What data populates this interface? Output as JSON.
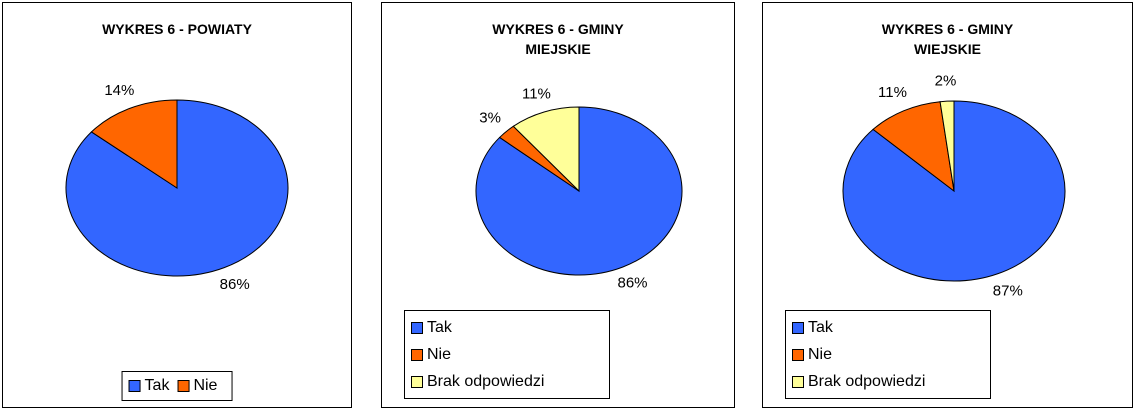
{
  "chart_data": [
    {
      "type": "pie",
      "title": "WYKRES 6 - POWIATY",
      "categories": [
        "Tak",
        "Nie"
      ],
      "values": [
        86,
        14
      ],
      "value_labels": [
        "86%",
        "14%"
      ],
      "colors": [
        "#3366ff",
        "#ff6600"
      ]
    },
    {
      "type": "pie",
      "title": "WYKRES 6 - GMINY MIEJSKIE",
      "categories": [
        "Tak",
        "Nie",
        "Brak odpowiedzi"
      ],
      "values": [
        86,
        3,
        11
      ],
      "value_labels": [
        "86%",
        "3%",
        "11%"
      ],
      "colors": [
        "#3366ff",
        "#ff6600",
        "#ffff99"
      ]
    },
    {
      "type": "pie",
      "title": "WYKRES 6 - GMINY WIEJSKIE",
      "categories": [
        "Tak",
        "Nie",
        "Brak odpowiedzi"
      ],
      "values": [
        87,
        11,
        2
      ],
      "value_labels": [
        "87%",
        "11%",
        "2%"
      ],
      "colors": [
        "#3366ff",
        "#ff6600",
        "#ffff99"
      ]
    }
  ]
}
